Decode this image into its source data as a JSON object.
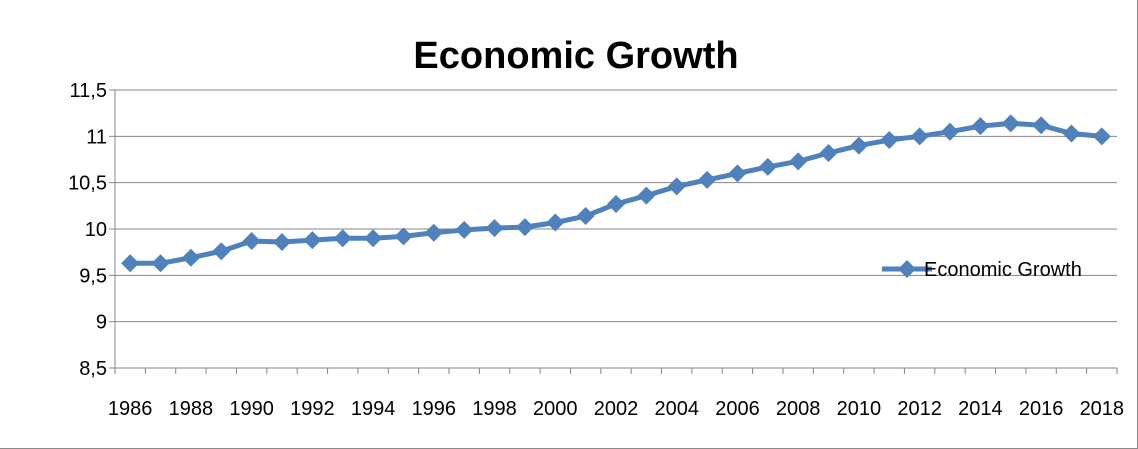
{
  "chart_data": {
    "type": "line",
    "title": "Economic Growth",
    "xlabel": "",
    "ylabel": "",
    "x": [
      1986,
      1987,
      1988,
      1989,
      1990,
      1991,
      1992,
      1993,
      1994,
      1995,
      1996,
      1997,
      1998,
      1999,
      2000,
      2001,
      2002,
      2003,
      2004,
      2005,
      2006,
      2007,
      2008,
      2009,
      2010,
      2011,
      2012,
      2013,
      2014,
      2015,
      2016,
      2017,
      2018
    ],
    "x_tick_labels": [
      "1986",
      "1988",
      "1990",
      "1992",
      "1994",
      "1996",
      "1998",
      "2000",
      "2002",
      "2004",
      "2006",
      "2008",
      "2010",
      "2012",
      "2014",
      "2016",
      "2018"
    ],
    "y_ticks": [
      8.5,
      9,
      9.5,
      10,
      10.5,
      11,
      11.5
    ],
    "y_tick_labels": [
      "8,5",
      "9",
      "9,5",
      "10",
      "10,5",
      "11",
      "11,5"
    ],
    "ylim": [
      8.5,
      11.5
    ],
    "grid": true,
    "legend_position": "right",
    "series": [
      {
        "name": "Economic Growth",
        "color": "#4f81bd",
        "marker": "diamond",
        "values": [
          9.63,
          9.63,
          9.69,
          9.76,
          9.87,
          9.86,
          9.88,
          9.9,
          9.9,
          9.92,
          9.96,
          9.99,
          10.01,
          10.02,
          10.07,
          10.14,
          10.27,
          10.36,
          10.46,
          10.53,
          10.6,
          10.67,
          10.73,
          10.82,
          10.9,
          10.96,
          11.0,
          11.05,
          11.11,
          11.14,
          11.12,
          11.03,
          11.0
        ]
      }
    ]
  }
}
